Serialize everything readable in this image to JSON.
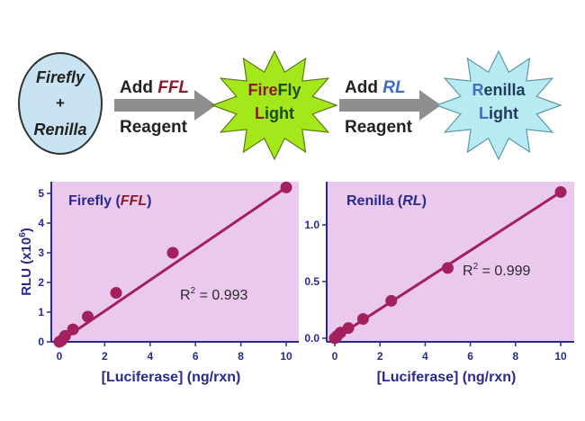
{
  "workflow": {
    "start": {
      "line1": "Firefly",
      "line2": "+",
      "line3": "Renilla"
    },
    "step1": {
      "add": "Add",
      "reagent_name": "FFL",
      "reagent": "Reagent"
    },
    "burst1": {
      "line1_a": "Fire",
      "line1_b": "Fly",
      "line2_a": "L",
      "line2_b": "ight"
    },
    "step2": {
      "add": "Add",
      "reagent_name": "RL",
      "reagent": "Reagent"
    },
    "burst2": {
      "line1_a": "R",
      "line1_b": "enilla",
      "line2_a": "L",
      "line2_b": "ight"
    }
  },
  "colors": {
    "plot_bg": "#EBC9EE",
    "series": "#A3205E",
    "navy": "#2A2A8A",
    "ffl_red": "#8B1A2A",
    "rl_blue": "#3F6FC0",
    "burst1": "#A4E81C",
    "burst2": "#B8EAF2",
    "oval": "#C8E4F2",
    "arrow": "#8E8E8E"
  },
  "chart_data": [
    {
      "type": "scatter",
      "title_a": "Firefly (",
      "title_b": "FFL",
      "title_c": ")",
      "xlabel": "[Luciferase] (ng/rxn)",
      "ylabel": "RLU (x10",
      "ylabel_sup": "6",
      "ylabel_end": ")",
      "xlim": [
        0,
        10.5
      ],
      "ylim": [
        0,
        5.5
      ],
      "xticks": [
        0,
        2,
        4,
        6,
        8,
        10
      ],
      "yticks": [
        0,
        1,
        2,
        3,
        4,
        5
      ],
      "ytick_labels": [
        "0",
        "1",
        "2",
        "3",
        "4",
        "5"
      ],
      "x": [
        0,
        0.1,
        0.25,
        0.6,
        1.25,
        2.5,
        5,
        10
      ],
      "y": [
        0,
        0.05,
        0.2,
        0.42,
        0.85,
        1.65,
        3.0,
        5.2
      ],
      "fit": {
        "x": [
          0,
          10
        ],
        "y": [
          0,
          5.2
        ]
      },
      "annotation_a": "R",
      "annotation_sup": "2",
      "annotation_b": " = 0.993",
      "grid": false,
      "legend": "none"
    },
    {
      "type": "scatter",
      "title_a": "Renilla (",
      "title_b": "RL",
      "title_c": ")",
      "xlabel": "[Luciferase] (ng/rxn)",
      "xlim": [
        0,
        10.5
      ],
      "ylim": [
        0,
        1.4
      ],
      "xticks": [
        0,
        2,
        4,
        6,
        8,
        10
      ],
      "yticks": [
        0,
        0.5,
        1.0
      ],
      "ytick_labels": [
        "0.0",
        "0.5",
        "1.0"
      ],
      "x": [
        0,
        0.1,
        0.25,
        0.6,
        1.25,
        2.5,
        5,
        10
      ],
      "y": [
        0,
        0.02,
        0.05,
        0.09,
        0.17,
        0.33,
        0.62,
        1.29
      ],
      "fit": {
        "x": [
          0,
          10
        ],
        "y": [
          0,
          1.29
        ]
      },
      "annotation_a": "R",
      "annotation_sup": "2",
      "annotation_b": " = 0.999",
      "grid": false,
      "legend": "none"
    }
  ]
}
